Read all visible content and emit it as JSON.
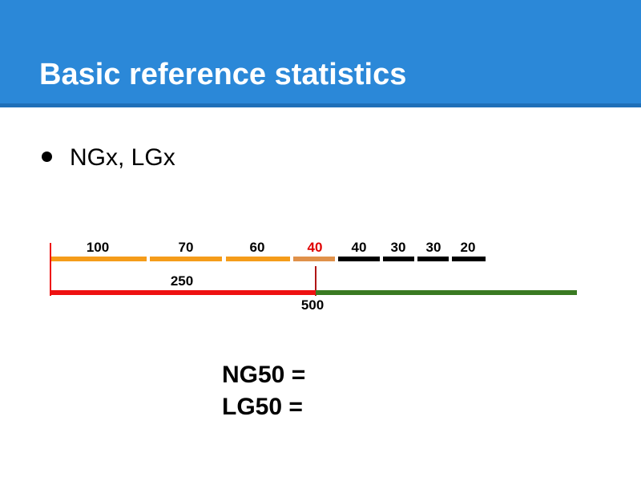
{
  "slide": {
    "title": "Basic reference statistics",
    "bullet": "NGx, LGx",
    "header_color": "#2b88d8"
  },
  "diagram": {
    "contigs": [
      {
        "label": "100",
        "color": "#f59c1a"
      },
      {
        "label": "70",
        "color": "#f59c1a"
      },
      {
        "label": "60",
        "color": "#f59c1a"
      },
      {
        "label": "40",
        "color": "#e0914a",
        "label_color": "#e00000"
      },
      {
        "label": "40",
        "color": "#000000"
      },
      {
        "label": "30",
        "color": "#000000"
      },
      {
        "label": "30",
        "color": "#000000"
      },
      {
        "label": "20",
        "color": "#000000"
      }
    ],
    "half_label": "250",
    "reference_label": "500",
    "half_color": "#ee1111",
    "rest_color": "#3a7a22"
  },
  "equations": {
    "ng50": "NG50 =",
    "lg50": "LG50 ="
  }
}
